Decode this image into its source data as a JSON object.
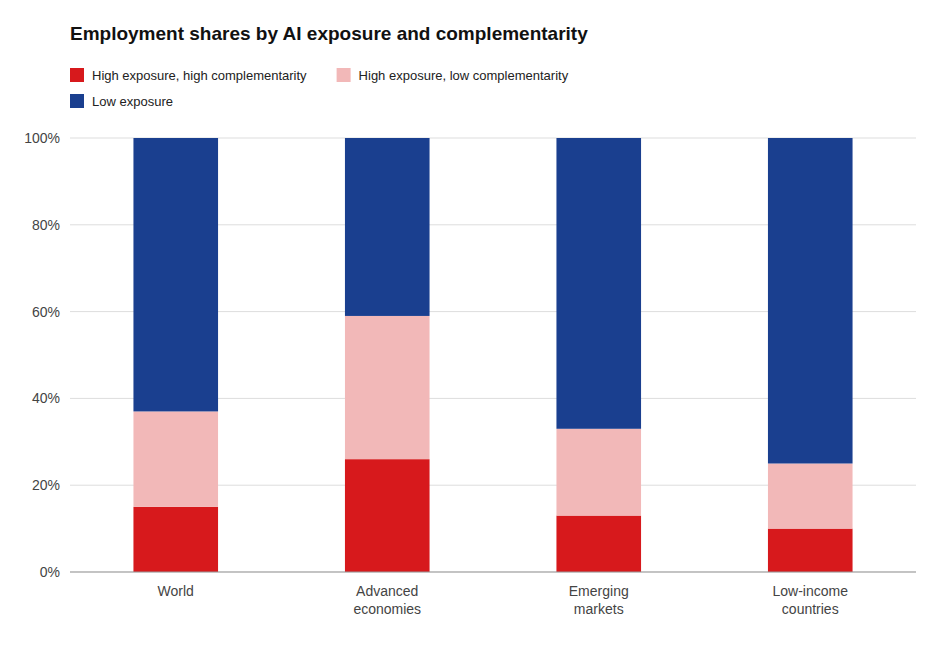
{
  "chart_data": {
    "type": "bar",
    "stacked": true,
    "title": "Employment shares by AI exposure and complementarity",
    "categories": [
      "World",
      "Advanced\neconomies",
      "Emerging\nmarkets",
      "Low-income\ncountries"
    ],
    "series": [
      {
        "name": "High exposure, high complementarity",
        "color": "#d7191c",
        "values": [
          15,
          26,
          13,
          10
        ]
      },
      {
        "name": "High exposure, low complementarity",
        "color": "#f2b8b8",
        "values": [
          22,
          33,
          20,
          15
        ]
      },
      {
        "name": "Low exposure",
        "color": "#1a3f8f",
        "values": [
          63,
          41,
          67,
          75
        ]
      }
    ],
    "ylim": [
      0,
      100
    ],
    "yticks": [
      {
        "value": 0,
        "label": "0%"
      },
      {
        "value": 20,
        "label": "20%"
      },
      {
        "value": 40,
        "label": "40%"
      },
      {
        "value": 60,
        "label": "60%"
      },
      {
        "value": 80,
        "label": "80%"
      },
      {
        "value": 100,
        "label": "100%"
      }
    ],
    "grid": true,
    "legend": "top-left"
  }
}
